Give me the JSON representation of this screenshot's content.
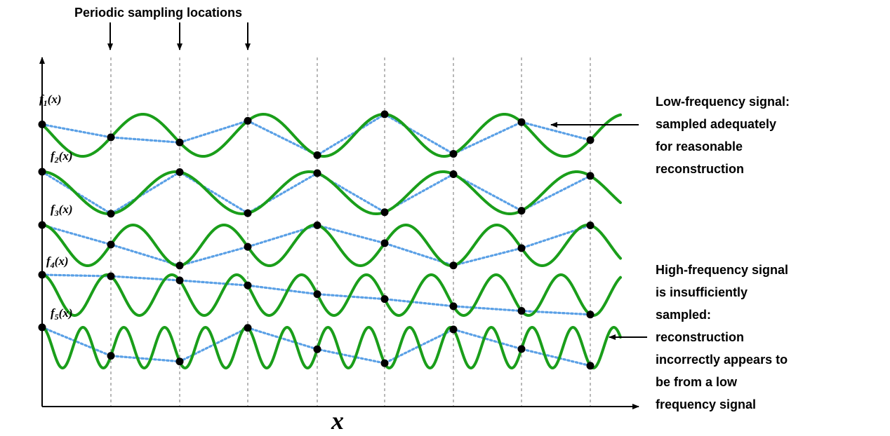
{
  "header": {
    "sampling_label": "Periodic sampling locations"
  },
  "axis": {
    "x_label": "x"
  },
  "signals": [
    {
      "label_main": "f",
      "label_sub": "1",
      "label_tail": "(x)",
      "color": "#1a9e1a"
    },
    {
      "label_main": "f",
      "label_sub": "2",
      "label_tail": "(x)",
      "color": "#1a9e1a"
    },
    {
      "label_main": "f",
      "label_sub": "3",
      "label_tail": "(x)",
      "color": "#1a9e1a"
    },
    {
      "label_main": "f",
      "label_sub": "4",
      "label_tail": "(x)",
      "color": "#1a9e1a"
    },
    {
      "label_main": "f",
      "label_sub": "5",
      "label_tail": "(x)",
      "color": "#1a9e1a"
    }
  ],
  "annotations": {
    "low_freq": {
      "lines": [
        "Low-frequency signal:",
        "sampled adequately",
        "for reasonable",
        "reconstruction"
      ]
    },
    "high_freq": {
      "lines": [
        "High-frequency signal",
        "is insufficiently",
        "sampled:",
        "reconstruction",
        "incorrectly appears to",
        "be from a low",
        "frequency signal"
      ]
    }
  },
  "colors": {
    "signal": "#1a9e1a",
    "reconstruction": "#5aa0e6",
    "sample_point": "#000000",
    "sampling_line": "#9a9a9a"
  }
}
